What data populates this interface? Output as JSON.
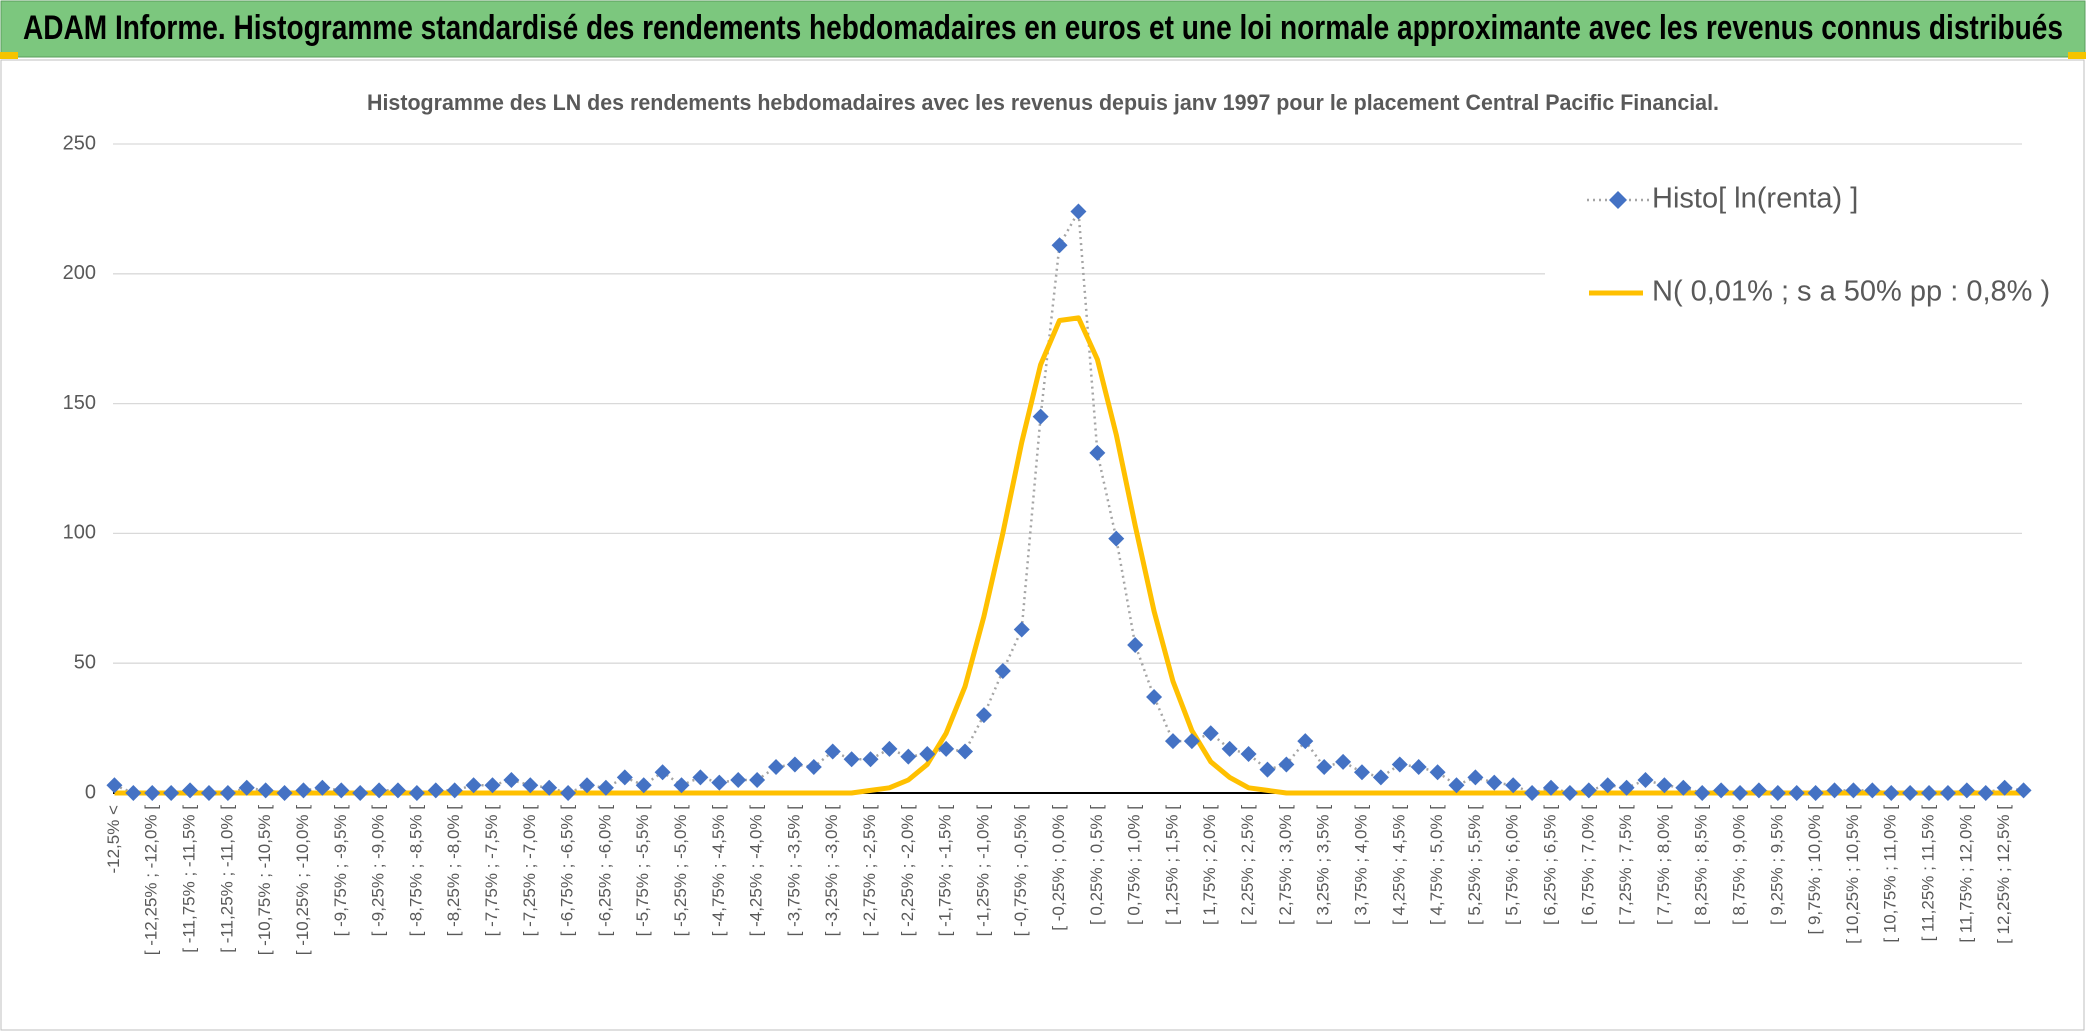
{
  "page_title": "ADAM Informe. Histogramme standardisé des rendements hebdomadaires en euros et une loi normale approximante avec les revenus connus distribués",
  "chart_data": {
    "type": "line",
    "title": "Histogramme des LN des rendements hebdomadaires avec les revenus depuis janv 1997 pour le placement Central Pacific Financial.",
    "categories": [
      "-12,5% <",
      null,
      "[ -12,25% ; -12,0% [",
      null,
      "[ -11,75% ; -11,5% [",
      null,
      "[ -11,25% ; -11,0% [",
      null,
      "[ -10,75% ; -10,5% [",
      null,
      "[ -10,25% ; -10,0% [",
      null,
      "[ -9,75% ; -9,5% [",
      null,
      "[ -9,25% ; -9,0% [",
      null,
      "[ -8,75% ; -8,5% [",
      null,
      "[ -8,25% ; -8,0% [",
      null,
      "[ -7,75% ; -7,5% [",
      null,
      "[ -7,25% ; -7,0% [",
      null,
      "[ -6,75% ; -6,5% [",
      null,
      "[ -6,25% ; -6,0% [",
      null,
      "[ -5,75% ; -5,5% [",
      null,
      "[ -5,25% ; -5,0% [",
      null,
      "[ -4,75% ; -4,5% [",
      null,
      "[ -4,25% ; -4,0% [",
      null,
      "[ -3,75% ; -3,5% [",
      null,
      "[ -3,25% ; -3,0% [",
      null,
      "[ -2,75% ; -2,5% [",
      null,
      "[ -2,25% ; -2,0% [",
      null,
      "[ -1,75% ; -1,5% [",
      null,
      "[ -1,25% ; -1,0% [",
      null,
      "[ -0,75% ; -0,5% [",
      null,
      "[ -0,25% ; 0,0% [",
      null,
      "[ 0,25% ; 0,5% [",
      null,
      "[ 0,75% ; 1,0% [",
      null,
      "[ 1,25% ; 1,5% [",
      null,
      "[ 1,75% ; 2,0% [",
      null,
      "[ 2,25% ; 2,5% [",
      null,
      "[ 2,75% ; 3,0% [",
      null,
      "[ 3,25% ; 3,5% [",
      null,
      "[ 3,75% ; 4,0% [",
      null,
      "[ 4,25% ; 4,5% [",
      null,
      "[ 4,75% ; 5,0% [",
      null,
      "[ 5,25% ; 5,5% [",
      null,
      "[ 5,75% ; 6,0% [",
      null,
      "[ 6,25% ; 6,5% [",
      null,
      "[ 6,75% ; 7,0% [",
      null,
      "[ 7,25% ; 7,5% [",
      null,
      "[ 7,75% ; 8,0% [",
      null,
      "[ 8,25% ; 8,5% [",
      null,
      "[ 8,75% ; 9,0% [",
      null,
      "[ 9,25% ; 9,5% [",
      null,
      "[ 9,75% ; 10,0% [",
      null,
      "[ 10,25% ; 10,5% [",
      null,
      "[ 10,75% ; 11,0% [",
      null,
      "[ 11,25% ; 11,5% [",
      null,
      "[ 11,75% ; 12,0% [",
      null,
      "[ 12,25% ; 12,5% [",
      null
    ],
    "series": [
      {
        "name": "Histo[ ln(renta) ]",
        "color": "#4472c4",
        "values": [
          3,
          0,
          0,
          0,
          1,
          0,
          0,
          2,
          1,
          0,
          1,
          2,
          1,
          0,
          1,
          1,
          0,
          1,
          1,
          3,
          3,
          5,
          3,
          2,
          0,
          3,
          2,
          6,
          3,
          8,
          3,
          6,
          4,
          5,
          5,
          10,
          11,
          10,
          16,
          13,
          13,
          17,
          14,
          15,
          17,
          16,
          30,
          47,
          63,
          145,
          211,
          224,
          131,
          98,
          57,
          37,
          20,
          20,
          23,
          17,
          15,
          9,
          11,
          20,
          10,
          12,
          8,
          6,
          11,
          10,
          8,
          3,
          6,
          4,
          3,
          0,
          2,
          0,
          1,
          3,
          2,
          5,
          3,
          2,
          0,
          1,
          0,
          1,
          0,
          0,
          0,
          1,
          1,
          1,
          0,
          0,
          0,
          0,
          1,
          0,
          2,
          1
        ]
      },
      {
        "name": "N( 0,01% ; s a 50% pp : 0,8% )",
        "color": "#ffc000",
        "values": [
          0,
          0,
          0,
          0,
          0,
          0,
          0,
          0,
          0,
          0,
          0,
          0,
          0,
          0,
          0,
          0,
          0,
          0,
          0,
          0,
          0,
          0,
          0,
          0,
          0,
          0,
          0,
          0,
          0,
          0,
          0,
          0,
          0,
          0,
          0,
          0,
          0,
          0,
          0,
          0,
          1,
          2,
          5,
          11,
          23,
          41,
          68,
          100,
          135,
          165,
          182,
          183,
          167,
          138,
          103,
          70,
          43,
          24,
          12,
          6,
          2,
          1,
          0,
          0,
          0,
          0,
          0,
          0,
          0,
          0,
          0,
          0,
          0,
          0,
          0,
          0,
          0,
          0,
          0,
          0,
          0,
          0,
          0,
          0,
          0,
          0,
          0,
          0,
          0,
          0,
          0,
          0,
          0,
          0,
          0,
          0,
          0,
          0,
          0,
          0,
          0,
          0
        ]
      }
    ],
    "ylim": [
      0,
      250
    ],
    "yticks": [
      0,
      50,
      100,
      150,
      200,
      250
    ],
    "grid": true,
    "legend": "top-right"
  }
}
